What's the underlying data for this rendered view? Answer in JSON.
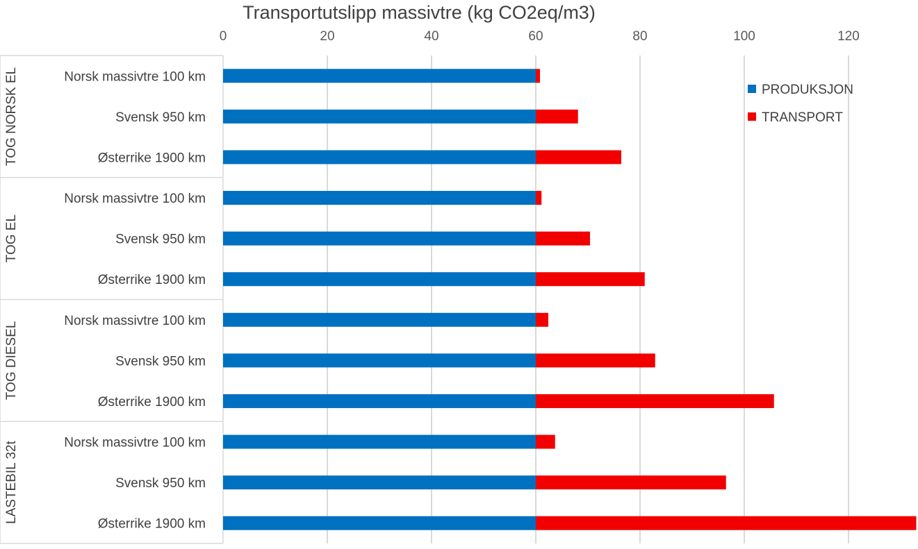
{
  "chart_data": {
    "type": "bar",
    "orientation": "horizontal",
    "stacked": true,
    "title": "Transportutslipp massivtre (kg CO2eq/m3)",
    "xlim": [
      0,
      133
    ],
    "xticks": [
      0,
      20,
      40,
      60,
      80,
      100,
      120
    ],
    "grid": true,
    "legend_position": "top-right",
    "groups": [
      {
        "label": "TOG NORSK EL",
        "categories": [
          "Norsk massivtre 100 km",
          "Svensk 950 km",
          "Østerrike 1900 km"
        ]
      },
      {
        "label": "TOG EL",
        "categories": [
          "Norsk massivtre 100 km",
          "Svensk 950 km",
          "Østerrike 1900 km"
        ]
      },
      {
        "label": "TOG DIESEL",
        "categories": [
          "Norsk massivtre 100 km",
          "Svensk 950 km",
          "Østerrike 1900 km"
        ]
      },
      {
        "label": "LASTEBIL 32t",
        "categories": [
          "Norsk massivtre 100 km",
          "Svensk 950 km",
          "Østerrike 1900 km"
        ]
      }
    ],
    "series": [
      {
        "name": "PRODUKSJON",
        "color": "#0070C0",
        "values": [
          60,
          60,
          60,
          60,
          60,
          60,
          60,
          60,
          60,
          60,
          60,
          60
        ]
      },
      {
        "name": "TRANSPORT",
        "color": "#F20000",
        "values": [
          0.8,
          8.1,
          16.4,
          1.1,
          10.4,
          20.9,
          2.4,
          22.9,
          45.7,
          3.7,
          36.5,
          73.0
        ]
      }
    ]
  }
}
